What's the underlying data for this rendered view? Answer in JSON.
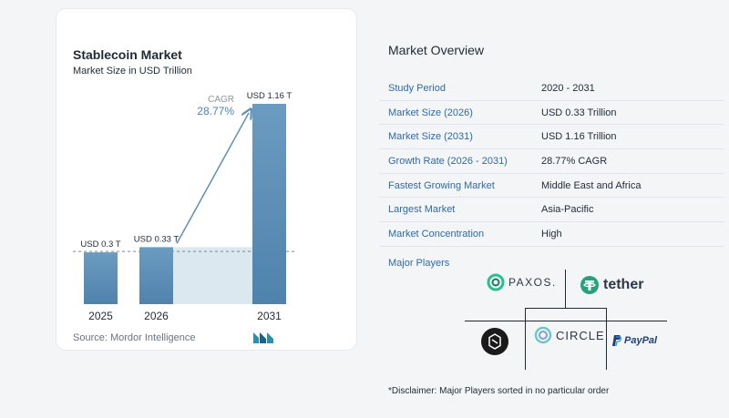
{
  "chart_data": {
    "type": "bar",
    "title": "Stablecoin Market",
    "subtitle": "Market Size in USD Trillion",
    "categories": [
      "2025",
      "2026",
      "2031"
    ],
    "values": [
      0.3,
      0.33,
      1.16
    ],
    "data_labels": [
      "USD 0.3 T",
      "USD 0.33 T",
      "USD 1.16 T"
    ],
    "cagr_label": "CAGR",
    "cagr_value": "28.77%",
    "bar_color": "#5e8fb5",
    "highlight_color": "#dce8f0"
  },
  "source": "Source:  Mordor Intelligence",
  "overview": {
    "title": "Market Overview",
    "rows": [
      {
        "label": "Study Period",
        "value": "2020 - 2031"
      },
      {
        "label": "Market Size (2026)",
        "value": "USD 0.33 Trillion"
      },
      {
        "label": "Market Size (2031)",
        "value": "USD 1.16 Trillion"
      },
      {
        "label": "Growth Rate (2026 - 2031)",
        "value": "28.77% CAGR"
      },
      {
        "label": "Fastest Growing Market",
        "value": "Middle East and Africa"
      },
      {
        "label": "Largest Market",
        "value": "Asia-Pacific"
      },
      {
        "label": "Market Concentration",
        "value": "High"
      }
    ]
  },
  "players": {
    "title": "Major Players",
    "logos": [
      "PAXOS.",
      "tether",
      "CIRCLE",
      "PayPal"
    ]
  },
  "disclaimer": "*Disclaimer: Major Players sorted in no particular order"
}
